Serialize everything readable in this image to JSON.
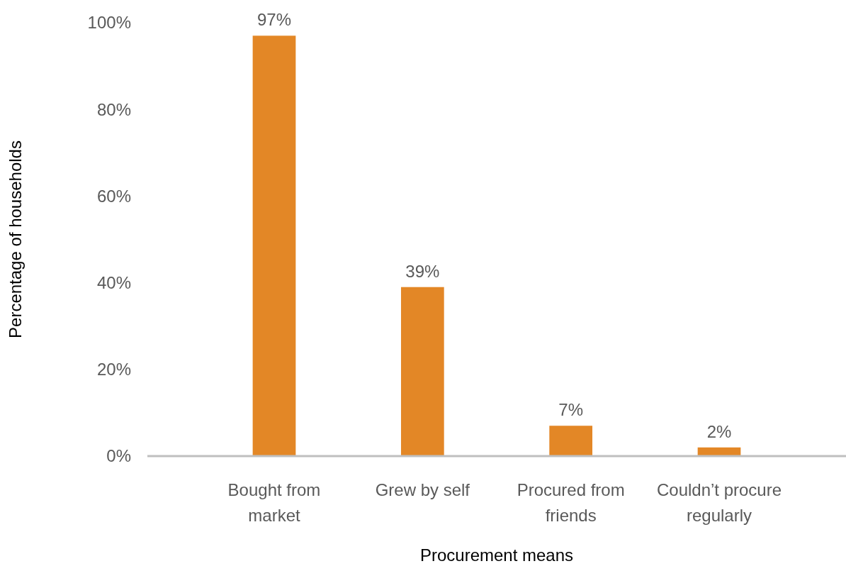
{
  "chart_data": {
    "type": "bar",
    "xlabel": "Procurement means",
    "ylabel": "Percentage of households",
    "categories": [
      "Bought from market",
      "Grew by self",
      "Procured from friends",
      "Couldn’t procure regularly"
    ],
    "values": [
      97,
      39,
      7,
      2
    ],
    "color": "#e38726",
    "value_labels": [
      "97%",
      "39%",
      "7%",
      "2%"
    ],
    "ylim": [
      0,
      100
    ],
    "yticks": [
      {
        "value": 0,
        "label": "0%"
      },
      {
        "value": 20,
        "label": "20%"
      },
      {
        "value": 40,
        "label": "40%"
      },
      {
        "value": 60,
        "label": "60%"
      },
      {
        "value": 80,
        "label": "80%"
      },
      {
        "value": 100,
        "label": "100%"
      }
    ],
    "grid": false
  }
}
